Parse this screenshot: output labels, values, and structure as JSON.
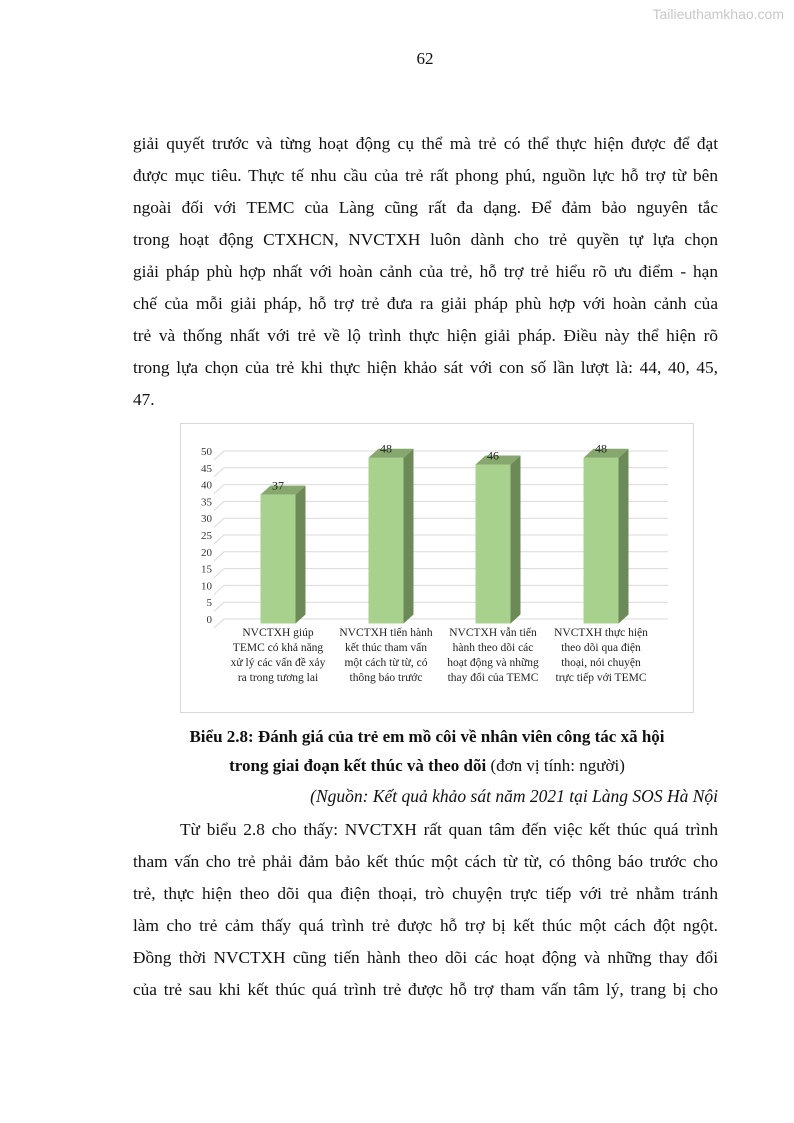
{
  "watermark": "Tailieuthamkhao.com",
  "page_number": "62",
  "paragraph1": [
    "giải quyết trước và từng hoạt động cụ thể mà trẻ có thể thực hiện được để đạt",
    "được mục tiêu. Thực tế nhu cầu của trẻ rất phong phú, nguồn lực hỗ trợ từ bên",
    "ngoài đối với TEMC của Làng cũng rất đa dạng. Để đảm bảo nguyên tắc",
    "trong hoạt động CTXHCN, NVCTXH luôn dành cho trẻ quyền tự lựa chọn",
    "giải pháp phù hợp nhất với hoàn cảnh của trẻ, hỗ trợ trẻ hiểu rõ ưu điểm - hạn",
    "chế của mỗi giải pháp, hỗ trợ trẻ đưa ra giải pháp phù hợp với hoàn cảnh của",
    "trẻ và thống nhất với trẻ về lộ trình thực hiện giải pháp. Điều này thể hiện rõ",
    "trong lựa chọn của trẻ khi thực hiện khảo sát với con số lần lượt là: 44, 40, 45,",
    "47."
  ],
  "chart_data": {
    "type": "bar",
    "style": "3d-column",
    "categories": [
      "NVCTXH giúp TEMC có khả năng xử lý các vấn đề xảy ra trong tương lai",
      "NVCTXH tiến hành kết thúc tham vấn một cách từ từ, có thông báo trước",
      "NVCTXH vẫn tiến hành theo dõi các hoạt động và những thay đổi của TEMC",
      "NVCTXH thực hiện theo dõi qua điện thoại, nói chuyện trực tiếp với TEMC"
    ],
    "values": [
      37,
      48,
      46,
      48
    ],
    "data_labels": [
      "37",
      "48",
      "46",
      "48"
    ],
    "ylim": [
      0,
      50
    ],
    "yticks": [
      "0",
      "5",
      "10",
      "15",
      "20",
      "25",
      "30",
      "35",
      "40",
      "45",
      "50"
    ],
    "grid": true,
    "legend": "none",
    "colors": {
      "front": "#a9d18e",
      "side": "#6b8a58",
      "top": "#86a86f",
      "grid": "#d9d9d9"
    }
  },
  "caption": {
    "bold_line1": "Biểu 2.8: Đánh giá của trẻ em mồ côi về nhân viên công tác xã hội",
    "bold_line2": "trong giai đoạn kết thúc và theo dõi",
    "unit": " (đơn vị tính: người)",
    "source": "(Nguồn: Kết quả khảo sát năm 2021 tại Làng SOS Hà Nội"
  },
  "paragraph2": [
    "Từ biểu 2.8 cho thấy: NVCTXH rất quan tâm đến việc kết thúc quá trình",
    "tham vấn cho trẻ phải đảm bảo kết thúc một cách từ từ, có thông báo trước cho",
    "trẻ, thực hiện theo dõi qua điện thoại, trò chuyện trực tiếp với trẻ nhằm tránh",
    "làm cho trẻ cảm thấy quá trình trẻ được hỗ trợ bị kết thúc một cách đột ngột.",
    "Đồng thời NVCTXH cũng tiến hành theo dõi các hoạt động và những thay đổi",
    "của trẻ sau khi kết thúc quá trình trẻ được hỗ trợ tham vấn tâm lý, trang bị cho"
  ]
}
